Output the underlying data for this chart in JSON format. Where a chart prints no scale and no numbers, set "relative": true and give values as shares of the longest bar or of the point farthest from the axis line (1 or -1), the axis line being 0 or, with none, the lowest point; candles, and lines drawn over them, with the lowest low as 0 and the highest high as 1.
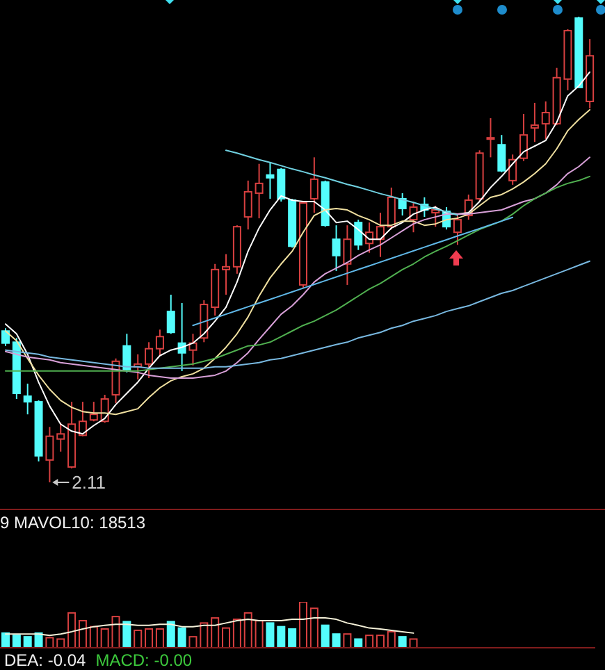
{
  "chart_data": [
    {
      "type": "candlestick",
      "relative": true,
      "categories": [
        null,
        null,
        null,
        null,
        null,
        null,
        null,
        null,
        null,
        null,
        null,
        null,
        null,
        null,
        null,
        null,
        null,
        null,
        null,
        null,
        null,
        null,
        null,
        null,
        null,
        null,
        null,
        null,
        null,
        null,
        null,
        null,
        null,
        null,
        null,
        null,
        null,
        null,
        null,
        null,
        null,
        null,
        null,
        null,
        null,
        null,
        null,
        null,
        null,
        null,
        null,
        null,
        null,
        null
      ],
      "ohlc": [
        [
          0.325,
          0.331,
          0.293,
          0.299
        ],
        [
          0.301,
          0.31,
          0.179,
          0.191
        ],
        [
          0.185,
          0.212,
          0.146,
          0.173
        ],
        [
          0.173,
          0.176,
          0.045,
          0.057
        ],
        [
          0.048,
          0.119,
          0,
          0.099
        ],
        [
          0.093,
          0.128,
          0.066,
          0.104
        ],
        [
          0.033,
          0.173,
          0.03,
          0.125
        ],
        [
          0.101,
          0.173,
          0.099,
          0.131
        ],
        [
          0.134,
          0.173,
          0.131,
          0.146
        ],
        [
          0.131,
          0.188,
          0.128,
          0.179
        ],
        [
          0.188,
          0.266,
          0.17,
          0.26
        ],
        [
          0.293,
          0.319,
          0.236,
          0.242
        ],
        [
          0.248,
          0.275,
          0.221,
          0.254
        ],
        [
          0.254,
          0.301,
          0.224,
          0.287
        ],
        [
          0.287,
          0.328,
          0.272,
          0.313
        ],
        [
          0.367,
          0.403,
          0.319,
          0.322
        ],
        [
          0.299,
          0.385,
          0.239,
          0.278
        ],
        [
          0.284,
          0.319,
          0.251,
          0.299
        ],
        [
          0.31,
          0.391,
          0.301,
          0.382
        ],
        [
          0.376,
          0.469,
          0.358,
          0.457
        ],
        [
          0.457,
          0.49,
          0.403,
          0.463
        ],
        [
          0.463,
          0.552,
          0.448,
          0.549
        ],
        [
          0.57,
          0.648,
          0.543,
          0.624
        ],
        [
          0.621,
          0.684,
          0.567,
          0.642
        ],
        [
          0.66,
          0.687,
          0.609,
          0.654
        ],
        [
          0.672,
          0.675,
          0.603,
          0.609
        ],
        [
          0.606,
          0.609,
          0.504,
          0.507
        ],
        [
          0.424,
          0.603,
          0.418,
          0.6
        ],
        [
          0.609,
          0.698,
          0.579,
          0.651
        ],
        [
          0.645,
          0.648,
          0.549,
          0.552
        ],
        [
          0.522,
          0.552,
          0.454,
          0.487
        ],
        [
          0.469,
          0.552,
          0.424,
          0.522
        ],
        [
          0.558,
          0.564,
          0.499,
          0.51
        ],
        [
          0.513,
          0.558,
          0.493,
          0.537
        ],
        [
          0.522,
          0.579,
          0.484,
          0.549
        ],
        [
          0.549,
          0.633,
          0.543,
          0.612
        ],
        [
          0.609,
          0.621,
          0.573,
          0.588
        ],
        [
          0.564,
          0.603,
          0.537,
          0.591
        ],
        [
          0.597,
          0.612,
          0.57,
          0.585
        ],
        [
          0.579,
          0.594,
          0.549,
          0.585
        ],
        [
          0.582,
          0.591,
          0.543,
          0.549
        ],
        [
          0.537,
          0.576,
          0.51,
          0.564
        ],
        [
          0.573,
          0.618,
          0.564,
          0.606
        ],
        [
          0.609,
          0.713,
          0.603,
          0.707
        ],
        [
          0.737,
          0.782,
          0.698,
          0.74
        ],
        [
          0.725,
          0.746,
          0.666,
          0.669
        ],
        [
          0.648,
          0.704,
          0.639,
          0.693
        ],
        [
          0.696,
          0.791,
          0.69,
          0.746
        ],
        [
          0.761,
          0.815,
          0.731,
          0.767
        ],
        [
          0.77,
          0.818,
          0.737,
          0.794
        ],
        [
          0.77,
          0.89,
          0.767,
          0.869
        ],
        [
          0.866,
          0.973,
          0.842,
          0.97
        ],
        [
          0.997,
          1,
          0.848,
          0.848
        ],
        [
          0.818,
          0.952,
          0.803,
          0.916
        ]
      ],
      "colors": [
        "#54fcfc",
        "#54fcfc",
        "#54fcfc",
        "#54fcfc",
        "#d84040",
        "#d84040",
        "#d84040",
        "#d84040",
        "#d84040",
        "#d84040",
        "#d84040",
        "#54fcfc",
        "#d84040",
        "#d84040",
        "#d84040",
        "#54fcfc",
        "#54fcfc",
        "#d84040",
        "#d84040",
        "#d84040",
        "#d84040",
        "#d84040",
        "#d84040",
        "#d84040",
        "#54fcfc",
        "#54fcfc",
        "#54fcfc",
        "#d84040",
        "#d84040",
        "#54fcfc",
        "#54fcfc",
        "#d84040",
        "#54fcfc",
        "#d84040",
        "#d84040",
        "#d84040",
        "#54fcfc",
        "#d84040",
        "#54fcfc",
        "#d84040",
        "#54fcfc",
        "#d84040",
        "#d84040",
        "#d84040",
        "#d84040",
        "#54fcfc",
        "#d84040",
        "#d84040",
        "#d84040",
        "#d84040",
        "#d84040",
        "#d84040",
        "#54fcfc",
        "#d84040"
      ],
      "series": [
        {
          "type": "line",
          "color": "#ffffff",
          "values": [
            0.34,
            0.319,
            0.275,
            0.215,
            0.164,
            0.125,
            0.11,
            0.104,
            0.122,
            0.137,
            0.167,
            0.191,
            0.215,
            0.245,
            0.272,
            0.284,
            0.29,
            0.299,
            0.319,
            0.346,
            0.376,
            0.43,
            0.496,
            0.546,
            0.585,
            0.615,
            0.606,
            0.603,
            0.603,
            0.585,
            0.558,
            0.561,
            0.543,
            0.522,
            0.522,
            0.546,
            0.558,
            0.576,
            0.585,
            0.591,
            0.579,
            0.576,
            0.579,
            0.603,
            0.633,
            0.657,
            0.684,
            0.71,
            0.722,
            0.734,
            0.773,
            0.83,
            0.851,
            0.881
          ]
        },
        {
          "type": "line",
          "color": "#f0e0a0",
          "values": [
            0.325,
            0.304,
            0.266,
            0.23,
            0.2,
            0.176,
            0.161,
            0.152,
            0.149,
            0.149,
            0.146,
            0.152,
            0.158,
            0.182,
            0.203,
            0.218,
            0.227,
            0.233,
            0.245,
            0.266,
            0.29,
            0.319,
            0.355,
            0.4,
            0.439,
            0.469,
            0.496,
            0.537,
            0.573,
            0.585,
            0.588,
            0.585,
            0.573,
            0.564,
            0.552,
            0.552,
            0.561,
            0.561,
            0.552,
            0.555,
            0.564,
            0.567,
            0.576,
            0.594,
            0.612,
            0.618,
            0.63,
            0.645,
            0.663,
            0.684,
            0.716,
            0.755,
            0.779,
            0.8
          ]
        },
        {
          "type": "line",
          "color": "#d8a0d8",
          "values": [
            0.281,
            0.275,
            0.269,
            0.266,
            0.263,
            0.257,
            0.254,
            0.251,
            0.248,
            0.245,
            0.242,
            0.239,
            0.236,
            0.23,
            0.227,
            0.224,
            0.224,
            0.224,
            0.227,
            0.23,
            0.239,
            0.257,
            0.278,
            0.307,
            0.334,
            0.361,
            0.379,
            0.403,
            0.43,
            0.448,
            0.46,
            0.472,
            0.487,
            0.499,
            0.51,
            0.525,
            0.54,
            0.555,
            0.564,
            0.57,
            0.576,
            0.576,
            0.576,
            0.579,
            0.582,
            0.585,
            0.594,
            0.603,
            0.609,
            0.621,
            0.639,
            0.663,
            0.678,
            0.698
          ]
        },
        {
          "type": "line",
          "color": "#50b050",
          "values": [
            0.239,
            0.239,
            0.239,
            0.239,
            0.239,
            0.239,
            0.239,
            0.239,
            0.239,
            0.239,
            0.239,
            0.239,
            0.239,
            0.242,
            0.245,
            0.248,
            0.251,
            0.254,
            0.26,
            0.266,
            0.275,
            0.284,
            0.293,
            0.295,
            0.301,
            0.313,
            0.325,
            0.337,
            0.346,
            0.358,
            0.37,
            0.385,
            0.4,
            0.415,
            0.427,
            0.442,
            0.457,
            0.469,
            0.484,
            0.496,
            0.507,
            0.519,
            0.531,
            0.543,
            0.552,
            0.561,
            0.576,
            0.594,
            0.609,
            0.621,
            0.633,
            0.642,
            0.648,
            0.657
          ]
        },
        {
          "type": "line",
          "color": "#78b8e0",
          "values": [
            0.284,
            0.281,
            0.278,
            0.275,
            0.269,
            0.266,
            0.263,
            0.26,
            0.257,
            0.254,
            0.251,
            0.248,
            0.248,
            0.245,
            0.245,
            0.245,
            0.245,
            0.245,
            0.245,
            0.248,
            0.248,
            0.251,
            0.254,
            0.257,
            0.263,
            0.266,
            0.272,
            0.278,
            0.284,
            0.29,
            0.296,
            0.301,
            0.31,
            0.316,
            0.322,
            0.331,
            0.337,
            0.346,
            0.352,
            0.358,
            0.367,
            0.373,
            0.379,
            0.388,
            0.397,
            0.406,
            0.412,
            0.421,
            0.43,
            0.439,
            0.448,
            0.457,
            0.466,
            0.475
          ]
        },
        {
          "type": "line",
          "color": "#70d0e0",
          "values": [
            null,
            null,
            null,
            null,
            null,
            null,
            null,
            null,
            null,
            null,
            null,
            null,
            null,
            null,
            null,
            null,
            null,
            null,
            null,
            null,
            0.713,
            0.707,
            0.7,
            0.693,
            0.687,
            0.68,
            0.673,
            0.667,
            0.66,
            0.654,
            0.647,
            0.64,
            0.634,
            0.627,
            0.62,
            0.614,
            0.607,
            0.601,
            0.594,
            0.587,
            0.581,
            0.574,
            null,
            null,
            null,
            null,
            null,
            null,
            null,
            null,
            null,
            null,
            null,
            null
          ]
        },
        {
          "type": "line",
          "color": "#60b8e8",
          "values": [
            null,
            null,
            null,
            null,
            null,
            null,
            null,
            null,
            null,
            null,
            null,
            null,
            null,
            null,
            null,
            null,
            null,
            0.337,
            0.345,
            0.353,
            0.361,
            0.369,
            0.377,
            0.385,
            0.393,
            0.401,
            0.409,
            0.417,
            0.425,
            0.433,
            0.441,
            0.449,
            0.457,
            0.465,
            0.473,
            0.481,
            0.489,
            0.497,
            0.505,
            0.513,
            0.521,
            0.529,
            0.537,
            0.545,
            0.553,
            0.561,
            0.569,
            null,
            null,
            null,
            null,
            null,
            null,
            null
          ]
        }
      ],
      "annotations": [
        "2.11"
      ]
    },
    {
      "type": "bar",
      "relative": true,
      "categories": [
        null,
        null,
        null,
        null,
        null,
        null,
        null,
        null,
        null,
        null,
        null,
        null,
        null,
        null,
        null,
        null,
        null,
        null,
        null,
        null,
        null,
        null,
        null,
        null,
        null,
        null,
        null,
        null,
        null,
        null,
        null,
        null,
        null,
        null,
        null,
        null,
        null,
        null,
        null,
        null,
        null,
        null,
        null,
        null,
        null,
        null,
        null,
        null,
        null,
        null,
        null,
        null,
        null,
        null
      ],
      "series": [
        {
          "type": "bar",
          "values": [
            0.32,
            0.27,
            0.24,
            0.32,
            0.22,
            0.19,
            0.76,
            0.59,
            0.46,
            0.41,
            0.68,
            0.57,
            0.38,
            0.41,
            0.41,
            0.57,
            0.43,
            0.24,
            0.54,
            0.65,
            0.43,
            0.62,
            0.76,
            0.59,
            0.54,
            0.46,
            0.41,
            1,
            0.86,
            0.49,
            0.3,
            0.3,
            0.19,
            0.27,
            0.27,
            0.35,
            0.24,
            0.19,
            null,
            null,
            null,
            null,
            null,
            null,
            null,
            null,
            null,
            null,
            null,
            null,
            null,
            null,
            null,
            null
          ],
          "colors": [
            "#54fcfc",
            "#54fcfc",
            "#54fcfc",
            "#54fcfc",
            "#d84040",
            "#d84040",
            "#d84040",
            "#d84040",
            "#d84040",
            "#d84040",
            "#d84040",
            "#54fcfc",
            "#d84040",
            "#d84040",
            "#d84040",
            "#54fcfc",
            "#54fcfc",
            "#d84040",
            "#d84040",
            "#d84040",
            "#d84040",
            "#d84040",
            "#d84040",
            "#d84040",
            "#54fcfc",
            "#54fcfc",
            "#54fcfc",
            "#d84040",
            "#d84040",
            "#54fcfc",
            "#54fcfc",
            "#d84040",
            "#54fcfc",
            "#d84040",
            "#d84040",
            "#d84040",
            "#54fcfc",
            "#d84040",
            null,
            null,
            null,
            null,
            null,
            null,
            null,
            null,
            null,
            null,
            null,
            null,
            null,
            null,
            null,
            null
          ]
        },
        {
          "type": "line",
          "color": "#f4f0d8",
          "values": [
            0.3,
            0.3,
            0.3,
            0.3,
            0.27,
            0.3,
            0.35,
            0.41,
            0.46,
            0.49,
            0.51,
            0.51,
            0.49,
            0.49,
            0.51,
            0.51,
            0.46,
            0.46,
            0.49,
            0.49,
            0.54,
            0.59,
            0.62,
            0.59,
            0.59,
            0.59,
            0.62,
            0.62,
            0.65,
            0.65,
            0.62,
            0.54,
            0.49,
            0.43,
            0.41,
            0.38,
            0.35,
            0.32,
            null,
            null,
            null,
            null,
            null,
            null,
            null,
            null,
            null,
            null,
            null,
            null,
            null,
            null,
            null,
            null
          ]
        }
      ],
      "annotations": [
        "9 MAVOL10: 18513",
        "DEA: -0.04",
        "MACD: -0.00"
      ]
    }
  ]
}
